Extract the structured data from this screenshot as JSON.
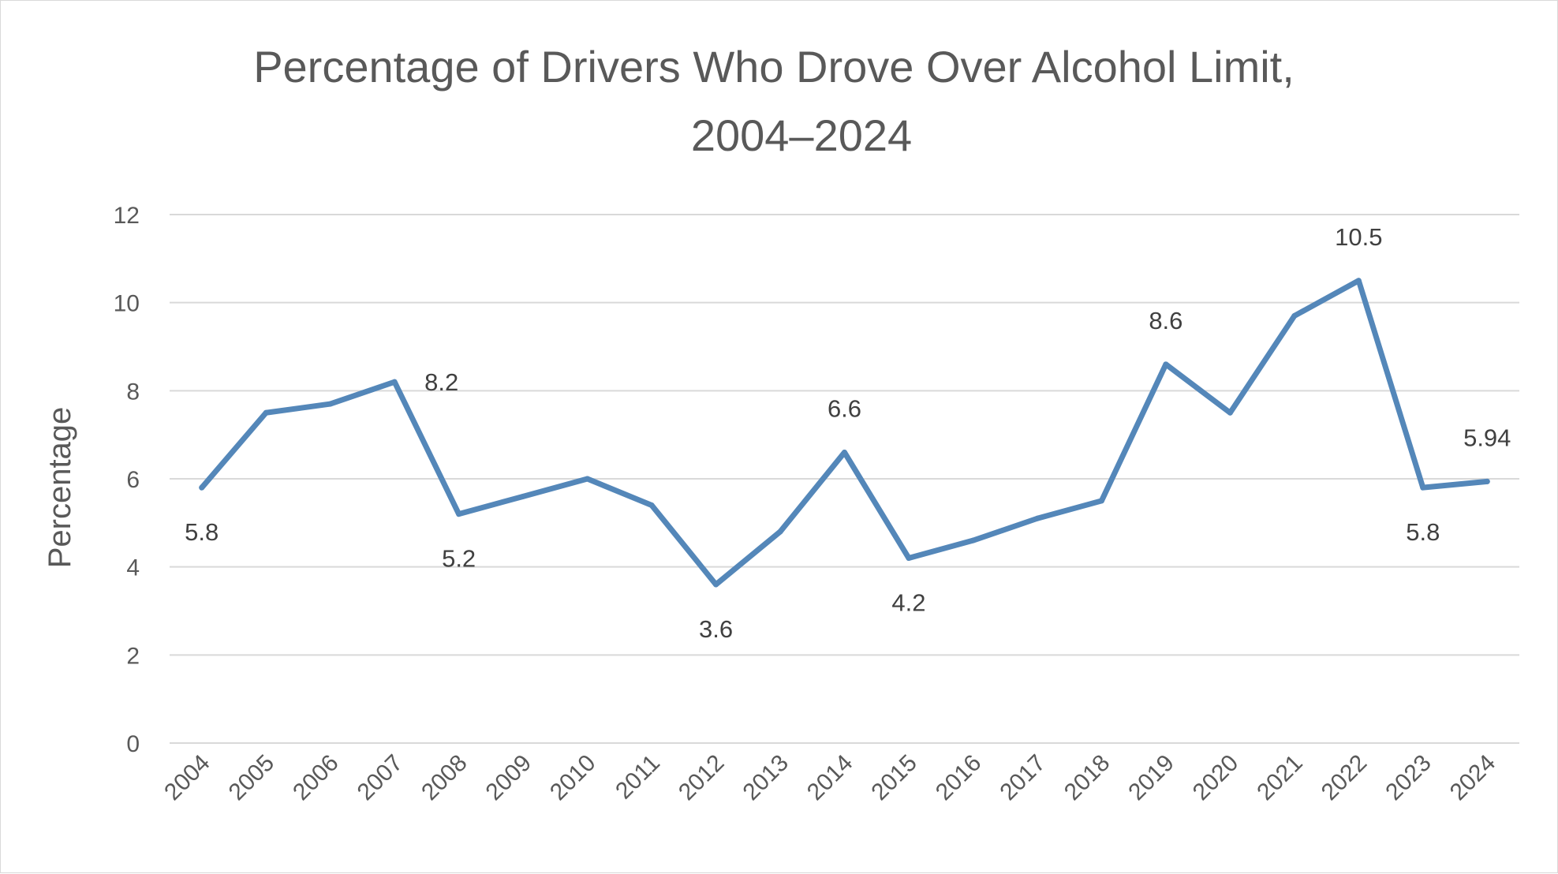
{
  "chart_data": {
    "type": "line",
    "title_lines": [
      "Percentage of Drivers Who Drove Over Alcohol Limit,",
      "2004–2024"
    ],
    "xlabel": "",
    "ylabel": "Percentage",
    "categories": [
      "2004",
      "2005",
      "2006",
      "2007",
      "2008",
      "2009",
      "2010",
      "2011",
      "2012",
      "2013",
      "2014",
      "2015",
      "2016",
      "2017",
      "2018",
      "2019",
      "2020",
      "2021",
      "2022",
      "2023",
      "2024"
    ],
    "series": [
      {
        "values": [
          5.8,
          7.5,
          7.7,
          8.2,
          5.2,
          5.6,
          6.0,
          5.4,
          3.6,
          4.8,
          6.6,
          4.2,
          4.6,
          5.1,
          5.5,
          8.6,
          7.5,
          9.7,
          10.5,
          5.8,
          5.94
        ],
        "color": "#5487b9"
      }
    ],
    "data_labels": [
      {
        "index": 0,
        "text": "5.8",
        "position": "below"
      },
      {
        "index": 3,
        "text": "8.2",
        "position": "right"
      },
      {
        "index": 4,
        "text": "5.2",
        "position": "below"
      },
      {
        "index": 8,
        "text": "3.6",
        "position": "below"
      },
      {
        "index": 10,
        "text": "6.6",
        "position": "above"
      },
      {
        "index": 11,
        "text": "4.2",
        "position": "below"
      },
      {
        "index": 15,
        "text": "8.6",
        "position": "above"
      },
      {
        "index": 18,
        "text": "10.5",
        "position": "above"
      },
      {
        "index": 19,
        "text": "5.8",
        "position": "below"
      },
      {
        "index": 20,
        "text": "5.94",
        "position": "above"
      }
    ],
    "ylim": [
      0,
      12
    ],
    "yticks": [
      0,
      2,
      4,
      6,
      8,
      10,
      12
    ],
    "grid": true,
    "legend": "none"
  }
}
